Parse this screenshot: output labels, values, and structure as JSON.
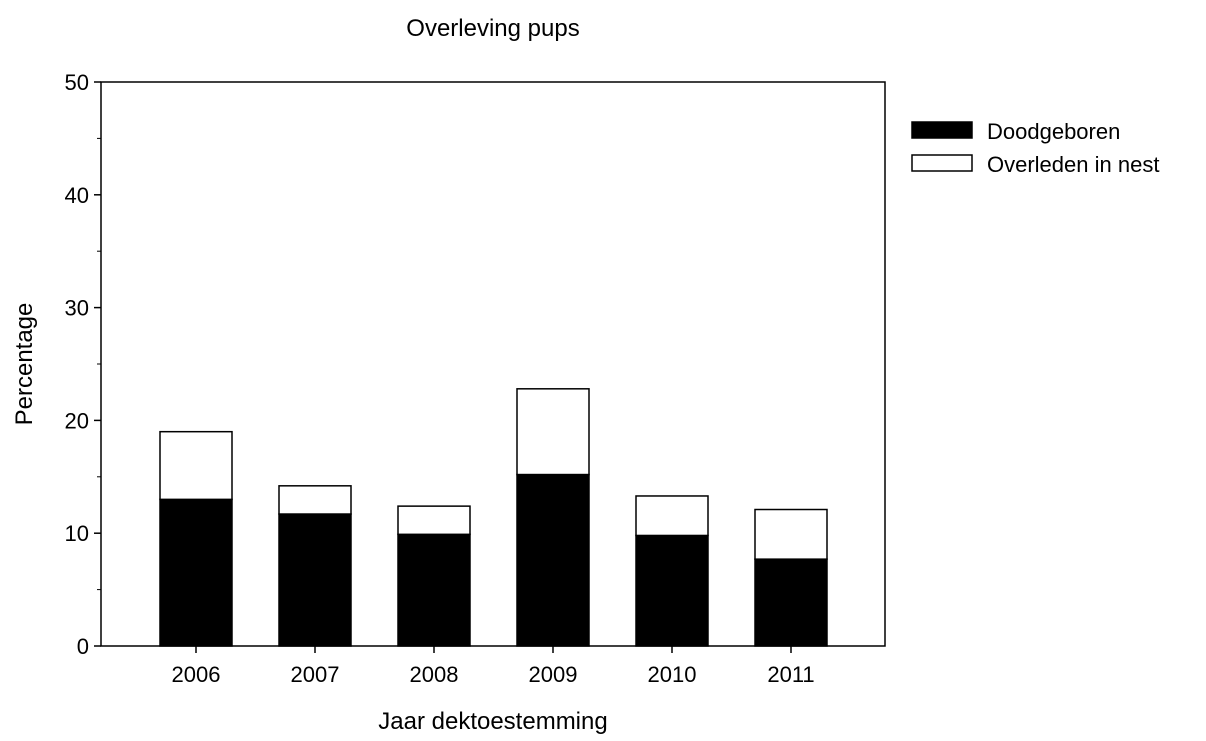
{
  "chart_data": {
    "type": "bar",
    "stacked": true,
    "title": "Overleving pups",
    "xlabel": "Jaar dektoestemming",
    "ylabel": "Percentage",
    "categories": [
      "2006",
      "2007",
      "2008",
      "2009",
      "2010",
      "2011"
    ],
    "series": [
      {
        "name": "Doodgeboren",
        "values": [
          13.0,
          11.7,
          9.9,
          15.2,
          9.8,
          7.7
        ],
        "color": "#000000"
      },
      {
        "name": "Overleden in nest",
        "values": [
          6.0,
          2.5,
          2.5,
          7.6,
          3.5,
          4.4
        ],
        "color": "#ffffff"
      }
    ],
    "ylim": [
      0,
      50
    ],
    "yticks": [
      "0",
      "10",
      "20",
      "30",
      "40",
      "50"
    ],
    "grid": false,
    "legend_position": "right"
  }
}
